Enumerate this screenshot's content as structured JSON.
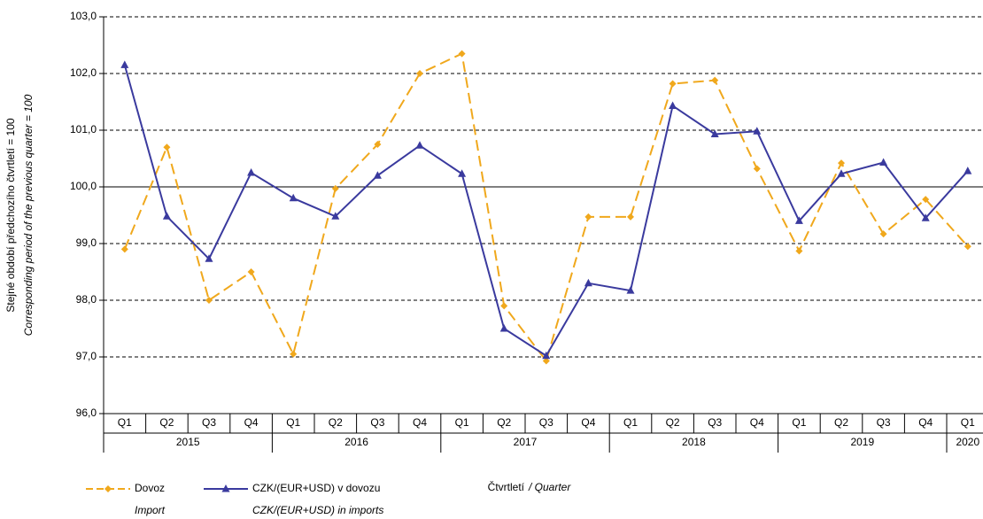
{
  "chart_data": {
    "type": "line",
    "y_label": "Stejné období předchozího čtvrtletí = 100",
    "y_label_en": "Corresponding  period of  the previous quarter = 100",
    "x_label": "Čtvrtletí",
    "x_label_en": "/ Quarter",
    "categories": [
      "Q1",
      "Q2",
      "Q3",
      "Q4",
      "Q1",
      "Q2",
      "Q3",
      "Q4",
      "Q1",
      "Q2",
      "Q3",
      "Q4",
      "Q1",
      "Q2",
      "Q3",
      "Q4",
      "Q1",
      "Q2",
      "Q3",
      "Q4",
      "Q1"
    ],
    "years": [
      "2015",
      "2016",
      "2017",
      "2018",
      "2019",
      "2020"
    ],
    "series": [
      {
        "name": "Dovoz",
        "name_en": "Import",
        "color": "#f0a81c",
        "dash": true,
        "marker": "diamond",
        "values": [
          98.9,
          100.7,
          98.0,
          98.5,
          97.05,
          99.97,
          100.75,
          102.0,
          102.35,
          97.9,
          96.93,
          99.47,
          99.47,
          101.82,
          101.88,
          100.32,
          98.87,
          100.42,
          99.17,
          99.78,
          98.95
        ]
      },
      {
        "name": "CZK/(EUR+USD) v dovozu",
        "name_en": "CZK/(EUR+USD)  in imports",
        "color": "#3a3a9e",
        "dash": false,
        "marker": "triangle",
        "values": [
          102.15,
          99.48,
          98.73,
          100.25,
          99.8,
          99.48,
          100.2,
          100.73,
          100.23,
          97.5,
          97.02,
          98.3,
          98.17,
          101.43,
          100.93,
          100.98,
          99.4,
          100.23,
          100.43,
          99.45,
          100.28
        ]
      }
    ],
    "ylim": [
      96,
      103
    ],
    "yticks": [
      {
        "value": 96,
        "label": "96,0"
      },
      {
        "value": 97,
        "label": "97,0"
      },
      {
        "value": 98,
        "label": "98,0"
      },
      {
        "value": 99,
        "label": "99,0"
      },
      {
        "value": 100,
        "label": "100,0"
      },
      {
        "value": 101,
        "label": "101,0"
      },
      {
        "value": 102,
        "label": "102,0"
      },
      {
        "value": 103,
        "label": "103,0"
      }
    ],
    "reference_line": 100,
    "grid": true
  }
}
